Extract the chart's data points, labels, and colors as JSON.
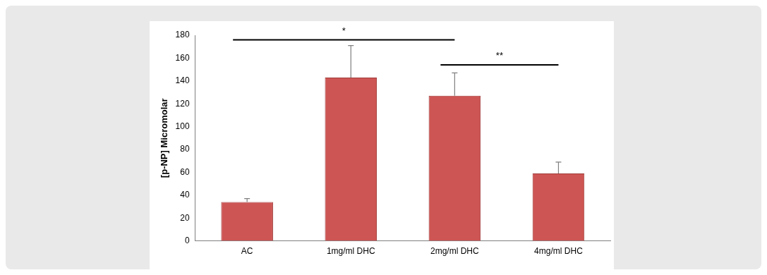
{
  "chart_data": {
    "type": "bar",
    "ylabel": "[p-NP] Micromolar",
    "categories": [
      "AC",
      "1mg/ml DHC",
      "2mg/ml DHC",
      "4mg/ml DHC"
    ],
    "values": [
      34,
      143,
      127,
      59
    ],
    "errors": [
      [
        34,
        37
      ],
      [
        143,
        171
      ],
      [
        127,
        147
      ],
      [
        59,
        69
      ]
    ],
    "color": "#cd5553",
    "ylim": [
      0,
      180
    ],
    "yticks": [
      0,
      20,
      40,
      60,
      80,
      100,
      120,
      140,
      160,
      180
    ],
    "grid": false,
    "legend": false,
    "annotations": [
      "*",
      "**"
    ]
  }
}
